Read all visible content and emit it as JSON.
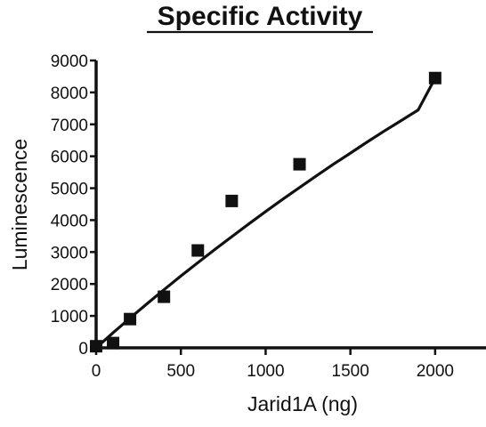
{
  "chart_data": {
    "type": "scatter",
    "title": "Specific Activity",
    "xlabel": "Jarid1A (ng)",
    "ylabel": "Luminescence",
    "xlim": [
      0,
      2300
    ],
    "ylim": [
      0,
      9000
    ],
    "xticks": [
      "0",
      "500",
      "1000",
      "1500",
      "2000"
    ],
    "yticks": [
      "0",
      "1000",
      "2000",
      "3000",
      "4000",
      "5000",
      "6000",
      "7000",
      "8000",
      "9000"
    ],
    "grid": false,
    "legend": "none",
    "marker": "square",
    "color": "#111111",
    "series": [
      {
        "points": [
          {
            "x": 0,
            "y": 50
          },
          {
            "x": 100,
            "y": 150
          },
          {
            "x": 200,
            "y": 900
          },
          {
            "x": 400,
            "y": 1600
          },
          {
            "x": 600,
            "y": 3050
          },
          {
            "x": 800,
            "y": 4600
          },
          {
            "x": 1200,
            "y": 5750
          },
          {
            "x": 2000,
            "y": 8450
          }
        ]
      }
    ],
    "fit_curve": [
      {
        "x": 0,
        "y": 0
      },
      {
        "x": 100,
        "y": 470
      },
      {
        "x": 200,
        "y": 930
      },
      {
        "x": 300,
        "y": 1380
      },
      {
        "x": 400,
        "y": 1820
      },
      {
        "x": 500,
        "y": 2250
      },
      {
        "x": 600,
        "y": 2670
      },
      {
        "x": 700,
        "y": 3080
      },
      {
        "x": 800,
        "y": 3480
      },
      {
        "x": 900,
        "y": 3880
      },
      {
        "x": 1000,
        "y": 4270
      },
      {
        "x": 1100,
        "y": 4650
      },
      {
        "x": 1200,
        "y": 5020
      },
      {
        "x": 1300,
        "y": 5390
      },
      {
        "x": 1400,
        "y": 5750
      },
      {
        "x": 1500,
        "y": 6100
      },
      {
        "x": 1600,
        "y": 6450
      },
      {
        "x": 1700,
        "y": 6790
      },
      {
        "x": 1800,
        "y": 7120
      },
      {
        "x": 1900,
        "y": 7450
      },
      {
        "x": 2000,
        "y": 8450
      }
    ]
  }
}
